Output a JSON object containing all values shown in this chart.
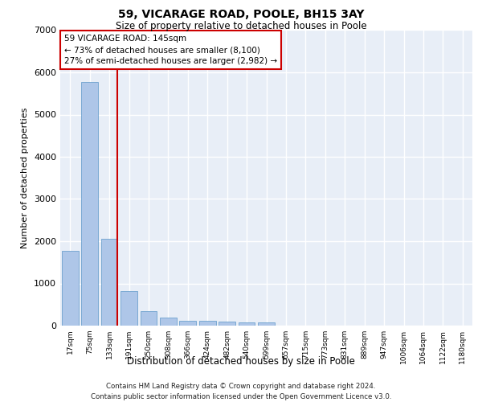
{
  "title1": "59, VICARAGE ROAD, POOLE, BH15 3AY",
  "title2": "Size of property relative to detached houses in Poole",
  "xlabel": "Distribution of detached houses by size in Poole",
  "ylabel": "Number of detached properties",
  "categories": [
    "17sqm",
    "75sqm",
    "133sqm",
    "191sqm",
    "250sqm",
    "308sqm",
    "366sqm",
    "424sqm",
    "482sqm",
    "540sqm",
    "599sqm",
    "657sqm",
    "715sqm",
    "773sqm",
    "831sqm",
    "889sqm",
    "947sqm",
    "1006sqm",
    "1064sqm",
    "1122sqm",
    "1180sqm"
  ],
  "values": [
    1780,
    5780,
    2060,
    820,
    340,
    190,
    120,
    110,
    100,
    85,
    80,
    0,
    0,
    0,
    0,
    0,
    0,
    0,
    0,
    0,
    0
  ],
  "bar_color": "#aec6e8",
  "bar_edge_color": "#5a96c8",
  "vline_x_index": 2,
  "vline_color": "#cc0000",
  "annotation_text": "59 VICARAGE ROAD: 145sqm\n← 73% of detached houses are smaller (8,100)\n27% of semi-detached houses are larger (2,982) →",
  "ylim_max": 7000,
  "yticks": [
    0,
    1000,
    2000,
    3000,
    4000,
    5000,
    6000,
    7000
  ],
  "bg_color": "#e8eef7",
  "grid_color": "#ffffff",
  "footer1": "Contains HM Land Registry data © Crown copyright and database right 2024.",
  "footer2": "Contains public sector information licensed under the Open Government Licence v3.0."
}
